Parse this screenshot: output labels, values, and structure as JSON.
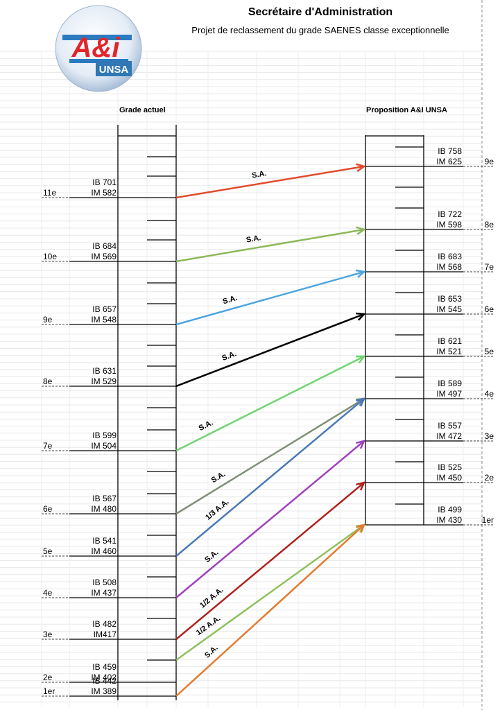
{
  "header": {
    "title": "Secrétaire d'Administration",
    "subtitle": "Projet de reclassement du grade SAENES classe exceptionnelle"
  },
  "logo": {
    "text": "A&i",
    "subtext": "UNSA"
  },
  "left": {
    "label": "Grade actuel",
    "steps": [
      {
        "step": "11e",
        "ib": "IB 701",
        "im": "IM 582"
      },
      {
        "step": "10e",
        "ib": "IB 684",
        "im": "IM 569"
      },
      {
        "step": "9e",
        "ib": "IB 657",
        "im": "IM 548"
      },
      {
        "step": "8e",
        "ib": "IB 631",
        "im": "IM 529"
      },
      {
        "step": "7e",
        "ib": "IB 599",
        "im": "IM 504"
      },
      {
        "step": "6e",
        "ib": "IB 567",
        "im": "IM 480"
      },
      {
        "step": "5e",
        "ib": "IB 541",
        "im": "IM 460"
      },
      {
        "step": "4e",
        "ib": "IB 508",
        "im": "IM 437"
      },
      {
        "step": "3e",
        "ib": "IB 482",
        "im": "IM417"
      },
      {
        "step": "2e",
        "ib": "IB 459",
        "im": "IM 402"
      },
      {
        "step": "1er",
        "ib": "IB 442",
        "im": "IM 389"
      }
    ]
  },
  "right": {
    "label": "Proposition A&I UNSA",
    "steps": [
      {
        "step": "9e",
        "ib": "IB 758",
        "im": "IM 625"
      },
      {
        "step": "8e",
        "ib": "IB 722",
        "im": "IM 598"
      },
      {
        "step": "7e",
        "ib": "IB 683",
        "im": "IM 568"
      },
      {
        "step": "6e",
        "ib": "IB 653",
        "im": "IM 545"
      },
      {
        "step": "5e",
        "ib": "IB 621",
        "im": "IM 521"
      },
      {
        "step": "4e",
        "ib": "IB 589",
        "im": "IM 497"
      },
      {
        "step": "3e",
        "ib": "IB 557",
        "im": "IM 472"
      },
      {
        "step": "2e",
        "ib": "IB 525",
        "im": "IM 450"
      },
      {
        "step": "1er",
        "ib": "IB 499",
        "im": "IM 430"
      }
    ]
  },
  "arrows": [
    {
      "label": "S.A.",
      "color": "#e24a2c"
    },
    {
      "label": "S.A.",
      "color": "#8cb85a"
    },
    {
      "label": "S.A.",
      "color": "#4ba5e2"
    },
    {
      "label": "S.A.",
      "color": "#000000"
    },
    {
      "label": "S.A.",
      "color": "#6cd66c"
    },
    {
      "label": "S.A.",
      "color": "#7f8f78"
    },
    {
      "label": "1/3 A.A.",
      "color": "#4a78b8"
    },
    {
      "label": "S.A.",
      "color": "#a03fc2"
    },
    {
      "label": "1/2 A.A.",
      "color": "#b0201c"
    },
    {
      "label": "1/2 A.A.",
      "color": "#8cc05a"
    },
    {
      "label": "S.A.",
      "color": "#e57a2e"
    }
  ]
}
